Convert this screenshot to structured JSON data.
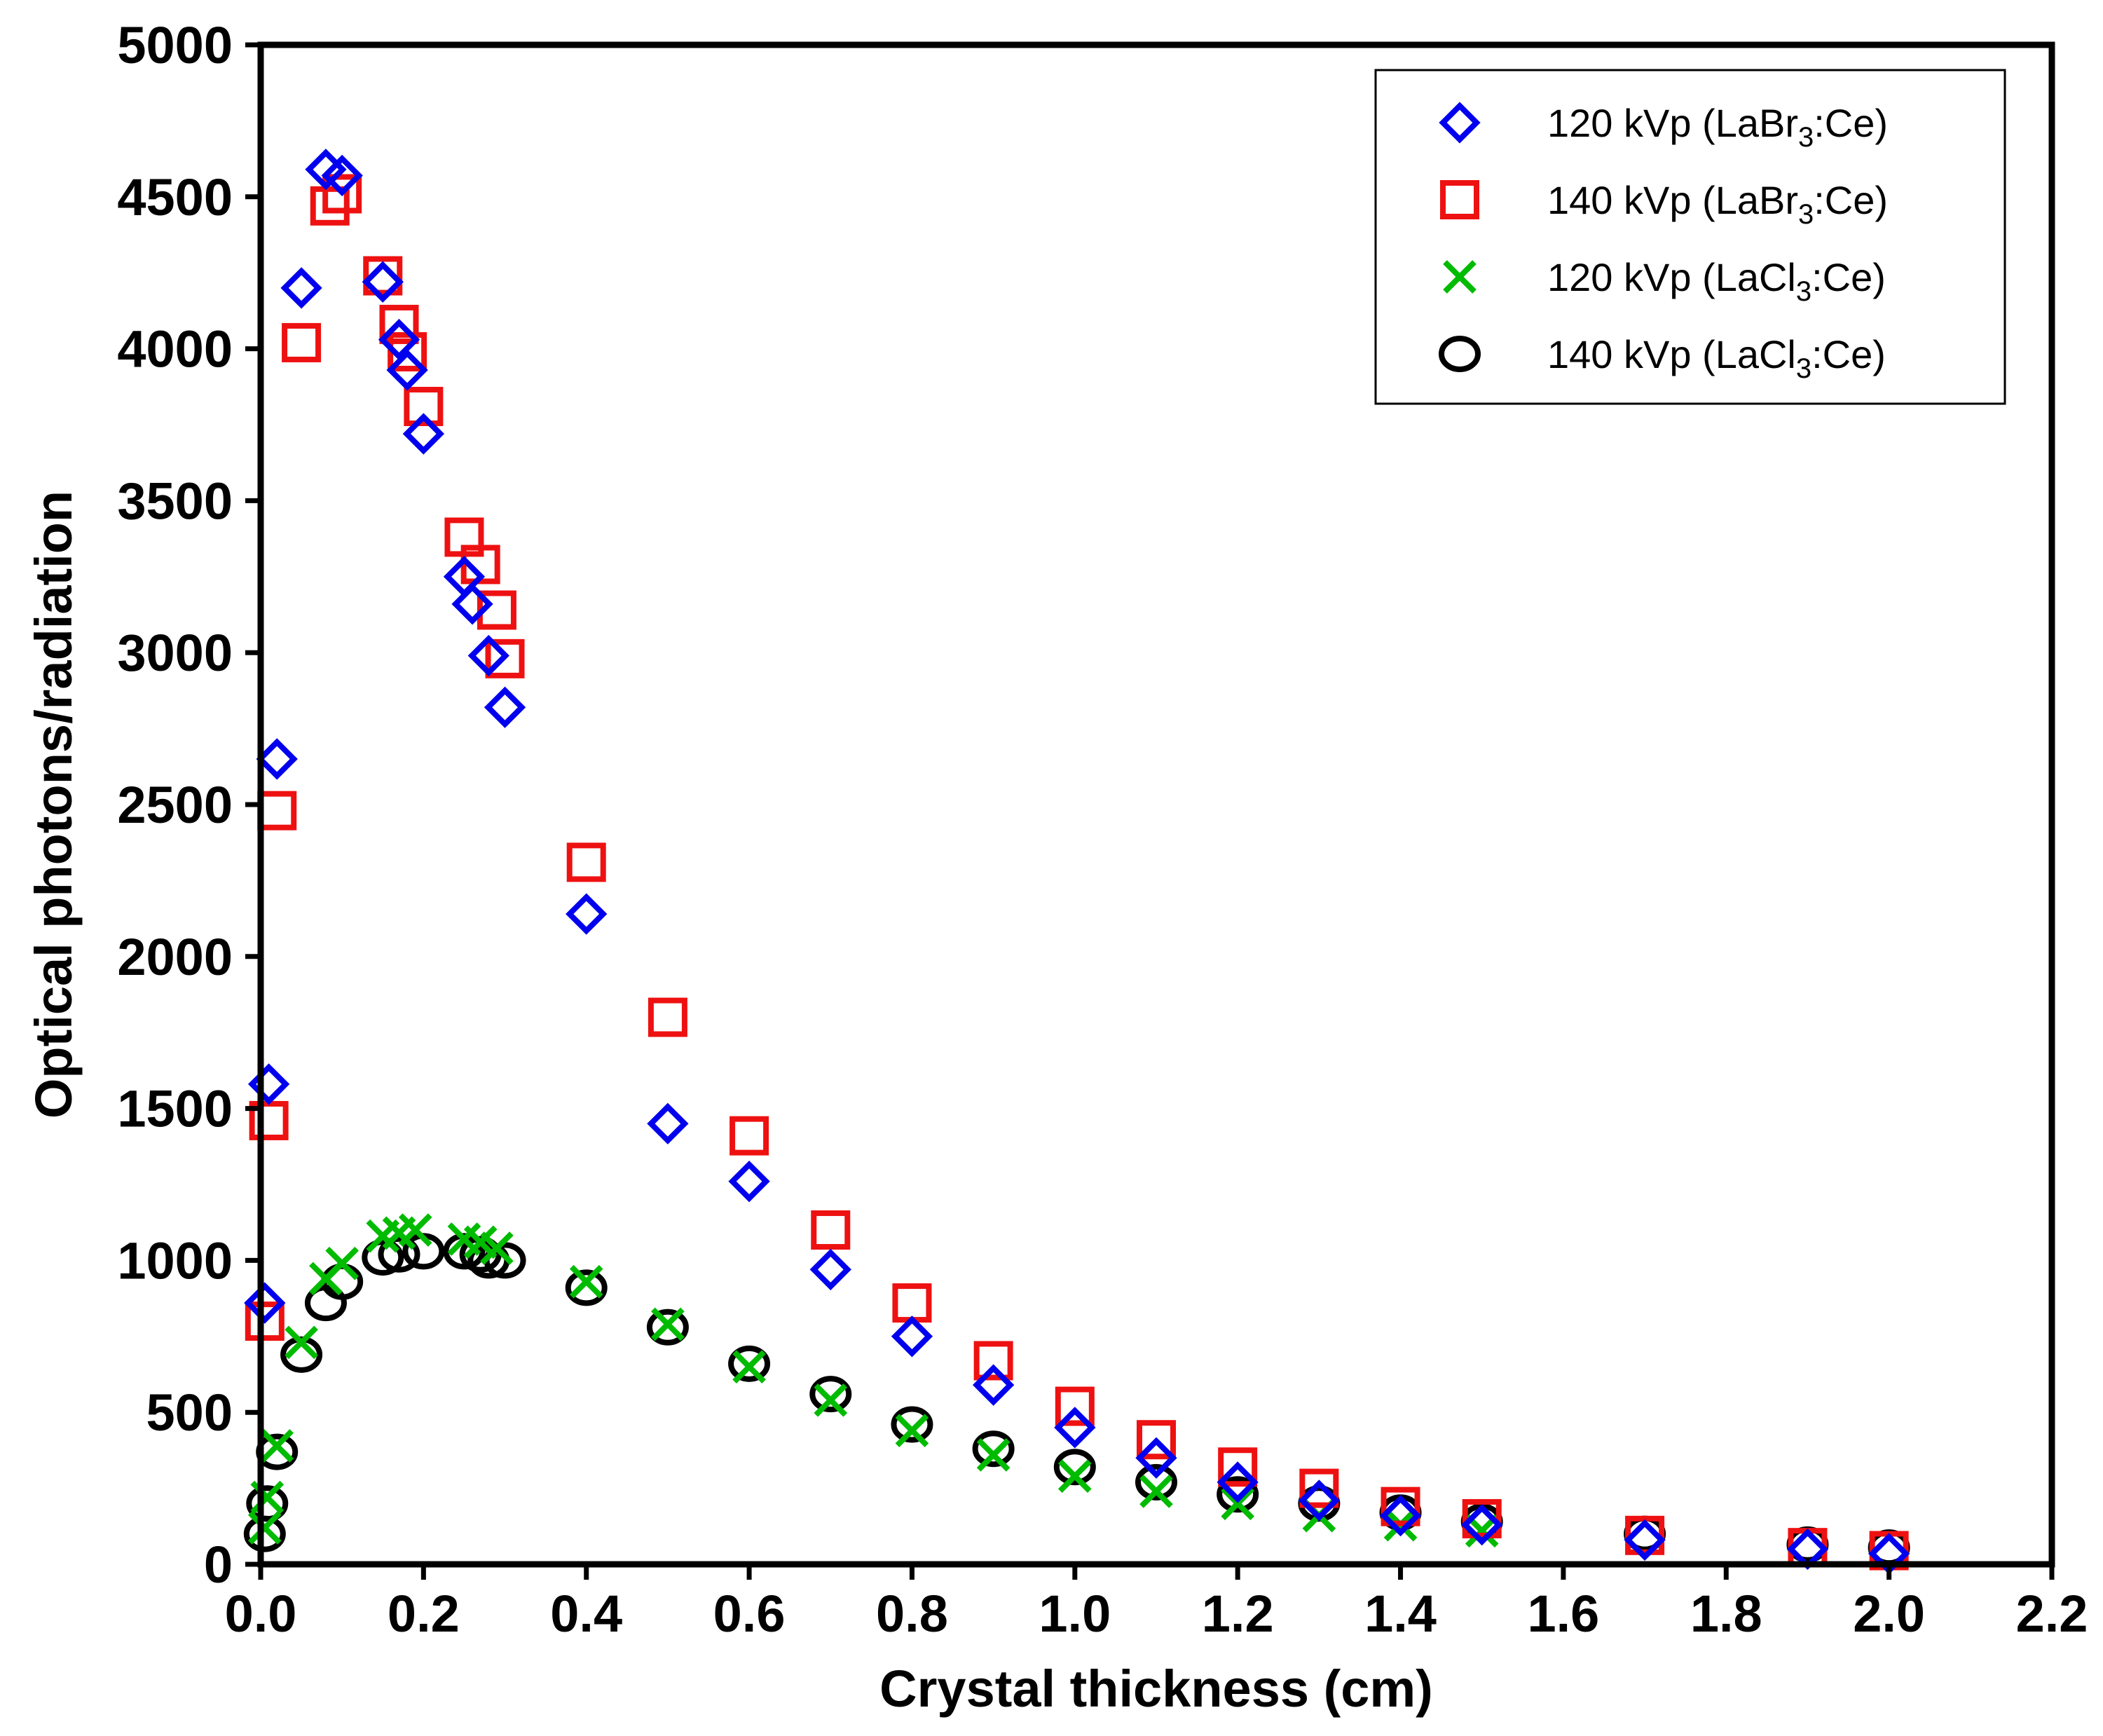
{
  "chart_data": {
    "type": "scatter",
    "xlabel": "Crystal thickness (cm)",
    "ylabel": "Optical photons/radiation",
    "xlim": [
      0,
      2.2
    ],
    "ylim": [
      0,
      5000
    ],
    "xticks": [
      "0.0",
      "0.2",
      "0.4",
      "0.6",
      "0.8",
      "1.0",
      "1.2",
      "1.4",
      "1.6",
      "1.8",
      "2.0",
      "2.2"
    ],
    "xtick_values": [
      0,
      0.2,
      0.4,
      0.6,
      0.8,
      1.0,
      1.2,
      1.4,
      1.6,
      1.8,
      2.0,
      2.2
    ],
    "yticks": [
      "0",
      "500",
      "1000",
      "1500",
      "2000",
      "2500",
      "3000",
      "3500",
      "4000",
      "4500",
      "5000"
    ],
    "ytick_values": [
      0,
      500,
      1000,
      1500,
      2000,
      2500,
      3000,
      3500,
      4000,
      4500,
      5000
    ],
    "grid": false,
    "legend_position": "top-right",
    "series": [
      {
        "name": "120 kVp (LaBr3:Ce)",
        "legend": {
          "prefix": "120 kVp (LaBr",
          "sub": "3",
          "suffix": ":Ce)"
        },
        "marker": "diamond",
        "color": "#0000ee",
        "points": [
          [
            0.005,
            860
          ],
          [
            0.01,
            1580
          ],
          [
            0.02,
            2650
          ],
          [
            0.05,
            4200
          ],
          [
            0.08,
            4590
          ],
          [
            0.1,
            4570
          ],
          [
            0.15,
            4220
          ],
          [
            0.17,
            4030
          ],
          [
            0.18,
            3930
          ],
          [
            0.2,
            3720
          ],
          [
            0.25,
            3250
          ],
          [
            0.26,
            3160
          ],
          [
            0.28,
            2990
          ],
          [
            0.3,
            2820
          ],
          [
            0.4,
            2140
          ],
          [
            0.5,
            1450
          ],
          [
            0.6,
            1260
          ],
          [
            0.7,
            970
          ],
          [
            0.8,
            750
          ],
          [
            0.9,
            590
          ],
          [
            1.0,
            450
          ],
          [
            1.1,
            350
          ],
          [
            1.2,
            270
          ],
          [
            1.3,
            210
          ],
          [
            1.4,
            160
          ],
          [
            1.5,
            130
          ],
          [
            1.7,
            80
          ],
          [
            1.9,
            50
          ],
          [
            2.0,
            35
          ]
        ]
      },
      {
        "name": "140 kVp (LaBr3:Ce)",
        "legend": {
          "prefix": "140 kVp (LaBr",
          "sub": "3",
          "suffix": ":Ce)"
        },
        "marker": "square",
        "color": "#ee1111",
        "points": [
          [
            0.005,
            800
          ],
          [
            0.01,
            1460
          ],
          [
            0.02,
            2480
          ],
          [
            0.05,
            4020
          ],
          [
            0.085,
            4470
          ],
          [
            0.1,
            4510
          ],
          [
            0.15,
            4240
          ],
          [
            0.17,
            4080
          ],
          [
            0.18,
            3990
          ],
          [
            0.2,
            3810
          ],
          [
            0.25,
            3380
          ],
          [
            0.27,
            3290
          ],
          [
            0.29,
            3140
          ],
          [
            0.3,
            2980
          ],
          [
            0.4,
            2310
          ],
          [
            0.5,
            1800
          ],
          [
            0.6,
            1410
          ],
          [
            0.7,
            1100
          ],
          [
            0.8,
            860
          ],
          [
            0.9,
            670
          ],
          [
            1.0,
            520
          ],
          [
            1.1,
            410
          ],
          [
            1.2,
            320
          ],
          [
            1.3,
            250
          ],
          [
            1.4,
            190
          ],
          [
            1.5,
            150
          ],
          [
            1.7,
            95
          ],
          [
            1.9,
            55
          ],
          [
            2.0,
            45
          ]
        ]
      },
      {
        "name": "120 kVp (LaCl3:Ce)",
        "legend": {
          "prefix": "120 kVp (LaCl",
          "sub": "3",
          "suffix": ":Ce)"
        },
        "marker": "x",
        "color": "#00bb00",
        "points": [
          [
            0.005,
            120
          ],
          [
            0.008,
            220
          ],
          [
            0.02,
            390
          ],
          [
            0.05,
            730
          ],
          [
            0.08,
            940
          ],
          [
            0.1,
            990
          ],
          [
            0.15,
            1080
          ],
          [
            0.17,
            1090
          ],
          [
            0.19,
            1100
          ],
          [
            0.25,
            1070
          ],
          [
            0.27,
            1060
          ],
          [
            0.29,
            1040
          ],
          [
            0.4,
            930
          ],
          [
            0.5,
            790
          ],
          [
            0.6,
            650
          ],
          [
            0.7,
            540
          ],
          [
            0.8,
            440
          ],
          [
            0.9,
            360
          ],
          [
            1.0,
            290
          ],
          [
            1.1,
            240
          ],
          [
            1.2,
            200
          ],
          [
            1.3,
            160
          ],
          [
            1.4,
            130
          ],
          [
            1.5,
            110
          ]
        ]
      },
      {
        "name": "140 kVp (LaCl3:Ce)",
        "legend": {
          "prefix": "140 kVp (LaCl",
          "sub": "3",
          "suffix": ":Ce)"
        },
        "marker": "circle",
        "color": "#000000",
        "points": [
          [
            0.005,
            100
          ],
          [
            0.008,
            200
          ],
          [
            0.02,
            370
          ],
          [
            0.05,
            690
          ],
          [
            0.08,
            860
          ],
          [
            0.1,
            930
          ],
          [
            0.15,
            1010
          ],
          [
            0.17,
            1020
          ],
          [
            0.2,
            1030
          ],
          [
            0.25,
            1030
          ],
          [
            0.27,
            1020
          ],
          [
            0.28,
            1000
          ],
          [
            0.3,
            1000
          ],
          [
            0.4,
            910
          ],
          [
            0.5,
            780
          ],
          [
            0.6,
            660
          ],
          [
            0.7,
            560
          ],
          [
            0.8,
            460
          ],
          [
            0.9,
            380
          ],
          [
            1.0,
            320
          ],
          [
            1.1,
            270
          ],
          [
            1.2,
            230
          ],
          [
            1.3,
            200
          ],
          [
            1.4,
            170
          ],
          [
            1.5,
            140
          ],
          [
            1.7,
            100
          ],
          [
            1.9,
            65
          ],
          [
            2.0,
            55
          ]
        ]
      }
    ]
  }
}
